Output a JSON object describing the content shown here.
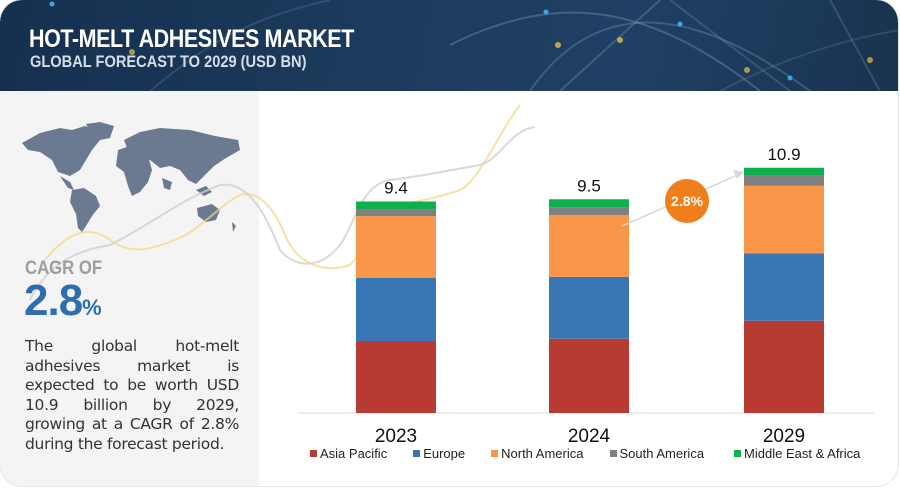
{
  "header": {
    "title": "HOT-MELT ADHESIVES MARKET",
    "subtitle": "GLOBAL FORECAST TO 2029 (USD BN)"
  },
  "left_panel": {
    "map_icon": "world-map-icon",
    "cagr_label": "CAGR OF",
    "cagr_number": "2.8",
    "cagr_percent": "%",
    "description": "The global hot-melt adhesives market is expected to be worth USD 10.9 billion by 2029, growing at a CAGR of 2.8% during the forecast period."
  },
  "cagr_bubble": "2.8%",
  "colors": {
    "banner": "#1c3a5c",
    "accent_blue": "#2f6db3",
    "bubble_orange": "#f07e1b"
  },
  "chart_data": {
    "type": "bar",
    "stacked": true,
    "title": "HOT-MELT ADHESIVES MARKET - GLOBAL FORECAST TO 2029 (USD BN)",
    "xlabel": "",
    "ylabel": "USD BN",
    "ylim": [
      0,
      11
    ],
    "grid": false,
    "legend_position": "bottom",
    "categories": [
      "2023",
      "2024",
      "2029"
    ],
    "totals": [
      "9.4",
      "9.5",
      "10.9"
    ],
    "series": [
      {
        "name": "Asia Pacific",
        "color": "#b73a33",
        "values": [
          3.2,
          3.3,
          4.1
        ]
      },
      {
        "name": "Europe",
        "color": "#3876b4",
        "values": [
          2.8,
          2.75,
          3.0
        ]
      },
      {
        "name": "North America",
        "color": "#f9964a",
        "values": [
          2.75,
          2.75,
          3.0
        ]
      },
      {
        "name": "South America",
        "color": "#808080",
        "values": [
          0.3,
          0.35,
          0.45
        ]
      },
      {
        "name": "Middle East & Africa",
        "color": "#0daf4e",
        "values": [
          0.35,
          0.35,
          0.35
        ]
      }
    ],
    "annotation": {
      "text": "2.8%",
      "type": "CAGR arrow",
      "from": "2024",
      "to": "2029"
    }
  }
}
